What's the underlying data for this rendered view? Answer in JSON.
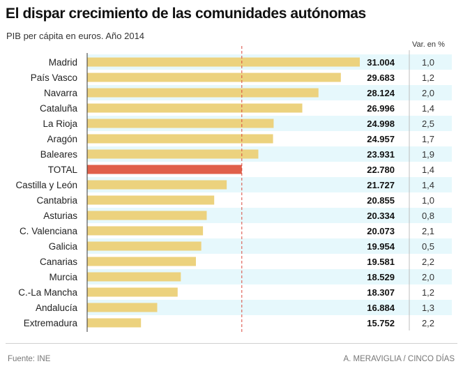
{
  "chart_data": {
    "type": "bar",
    "title": "El dispar crecimiento de las comunidades autónomas",
    "subtitle": "PIB per cápita en euros. Año 2014",
    "column_header": "Var. en %",
    "categories": [
      "Madrid",
      "País Vasco",
      "Navarra",
      "Cataluña",
      "La Rioja",
      "Aragón",
      "Baleares",
      "TOTAL",
      "Castilla y León",
      "Cantabria",
      "Asturias",
      "C. Valenciana",
      "Galicia",
      "Canarias",
      "Murcia",
      "C.-La Mancha",
      "Andalucía",
      "Extremadura"
    ],
    "values": [
      31004,
      29683,
      28124,
      26996,
      24998,
      24957,
      23931,
      22780,
      21727,
      20855,
      20334,
      20073,
      19954,
      19581,
      18529,
      18307,
      16884,
      15752
    ],
    "value_labels": [
      "31.004",
      "29.683",
      "28.124",
      "26.996",
      "24.998",
      "24.957",
      "23.931",
      "22.780",
      "21.727",
      "20.855",
      "20.334",
      "20.073",
      "19.954",
      "19.581",
      "18.529",
      "18.307",
      "16.884",
      "15.752"
    ],
    "variation_labels": [
      "1,0",
      "1,2",
      "2,0",
      "1,4",
      "2,5",
      "1,7",
      "1,9",
      "1,4",
      "1,4",
      "1,0",
      "0,8",
      "2,1",
      "0,5",
      "2,2",
      "2,0",
      "1,2",
      "1,3",
      "2,2"
    ],
    "highlight_category": "TOTAL",
    "reference_value": 22780,
    "xlim": [
      12000,
      31500
    ],
    "colors": {
      "bar": "#ecd27e",
      "highlight_bar": "#e0604a",
      "stripe": "#e6f8fc",
      "reference_line": "#d9463a",
      "axis": "#333333"
    }
  },
  "footer": {
    "source": "Fuente: INE",
    "credit": "A. MERAVIGLIA / CINCO DÍAS"
  }
}
